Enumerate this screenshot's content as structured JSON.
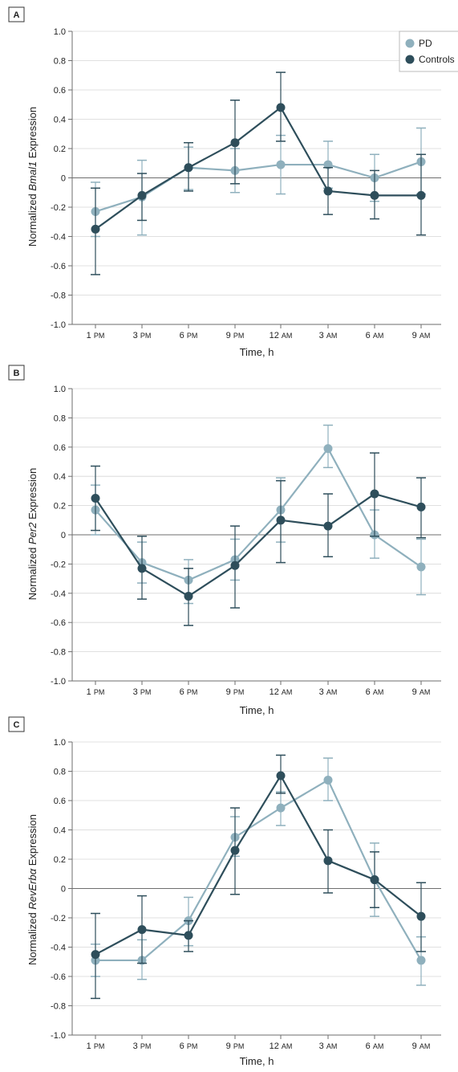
{
  "colors": {
    "PD": "#8fb0bd",
    "Controls": "#2e4e5b",
    "grid": "#d6d6d6",
    "axis": "#6e6e6e"
  },
  "legend": {
    "entries": [
      "PD",
      "Controls"
    ]
  },
  "chart_data": [
    {
      "type": "line",
      "panel": "A",
      "ylabel_pre": "Normalized ",
      "ylabel_gene": "Bmal1",
      "ylabel_post": " Expression",
      "xlabel": "Time, h",
      "categories": [
        "1 PM",
        "3 PM",
        "6 PM",
        "9 PM",
        "12 AM",
        "3 AM",
        "6 AM",
        "9 AM"
      ],
      "yticks": [
        "1.0",
        "0.8",
        "0.6",
        "0.4",
        "0.2",
        "0",
        "-0.2",
        "-0.4",
        "-0.6",
        "-0.8",
        "-1.0"
      ],
      "ylim": [
        -1.0,
        1.0
      ],
      "grid": true,
      "legend_position": "top-right",
      "series": [
        {
          "name": "PD",
          "values": [
            -0.23,
            -0.13,
            0.07,
            0.05,
            0.09,
            0.09,
            0.0,
            0.11
          ],
          "upper": [
            -0.03,
            0.12,
            0.21,
            0.2,
            0.29,
            0.25,
            0.16,
            0.34
          ],
          "lower": [
            -0.4,
            -0.39,
            -0.08,
            -0.1,
            -0.11,
            -0.07,
            -0.16,
            -0.11
          ]
        },
        {
          "name": "Controls",
          "values": [
            -0.35,
            -0.12,
            0.07,
            0.24,
            0.48,
            -0.09,
            -0.12,
            -0.12
          ],
          "upper": [
            -0.07,
            0.03,
            0.24,
            0.53,
            0.72,
            0.07,
            0.05,
            0.16
          ],
          "lower": [
            -0.66,
            -0.29,
            -0.09,
            -0.04,
            0.25,
            -0.25,
            -0.28,
            -0.39
          ]
        }
      ]
    },
    {
      "type": "line",
      "panel": "B",
      "ylabel_pre": "Normalized ",
      "ylabel_gene": "Per2",
      "ylabel_post": " Expression",
      "xlabel": "Time, h",
      "categories": [
        "1 PM",
        "3 PM",
        "6 PM",
        "9 PM",
        "12 AM",
        "3 AM",
        "6 AM",
        "9 AM"
      ],
      "yticks": [
        "1.0",
        "0.8",
        "0.6",
        "0.4",
        "0.2",
        "0",
        "-0.2",
        "-0.4",
        "-0.6",
        "-0.8",
        "-1.0"
      ],
      "ylim": [
        -1.0,
        1.0
      ],
      "grid": true,
      "series": [
        {
          "name": "PD",
          "values": [
            0.17,
            -0.19,
            -0.31,
            -0.17,
            0.17,
            0.59,
            0.0,
            -0.22
          ],
          "upper": [
            0.34,
            -0.05,
            -0.17,
            -0.03,
            0.39,
            0.75,
            0.17,
            -0.03
          ],
          "lower": [
            0.0,
            -0.33,
            -0.47,
            -0.31,
            -0.05,
            0.46,
            -0.16,
            -0.41
          ]
        },
        {
          "name": "Controls",
          "values": [
            0.25,
            -0.23,
            -0.42,
            -0.21,
            0.1,
            0.06,
            0.28,
            0.19
          ],
          "upper": [
            0.47,
            -0.01,
            -0.23,
            0.06,
            0.37,
            0.28,
            0.56,
            0.39
          ],
          "lower": [
            0.03,
            -0.44,
            -0.62,
            -0.5,
            -0.19,
            -0.15,
            -0.01,
            -0.02
          ]
        }
      ]
    },
    {
      "type": "line",
      "panel": "C",
      "ylabel_pre": "Normalized ",
      "ylabel_gene": "RevErbα",
      "ylabel_post": " Expression",
      "xlabel": "Time, h",
      "categories": [
        "1 PM",
        "3 PM",
        "6 PM",
        "9 PM",
        "12 AM",
        "3 AM",
        "6 AM",
        "9 AM"
      ],
      "yticks": [
        "1.0",
        "0.8",
        "0.6",
        "0.4",
        "0.2",
        "0",
        "-0.2",
        "-0.4",
        "-0.6",
        "-0.8",
        "-1.0"
      ],
      "ylim": [
        -1.0,
        1.0
      ],
      "grid": true,
      "series": [
        {
          "name": "PD",
          "values": [
            -0.49,
            -0.49,
            -0.22,
            0.35,
            0.55,
            0.74,
            0.06,
            -0.49
          ],
          "upper": [
            -0.38,
            -0.35,
            -0.06,
            0.49,
            0.66,
            0.89,
            0.31,
            -0.33
          ],
          "lower": [
            -0.6,
            -0.62,
            -0.39,
            0.22,
            0.43,
            0.6,
            -0.19,
            -0.66
          ]
        },
        {
          "name": "Controls",
          "values": [
            -0.45,
            -0.28,
            -0.32,
            0.26,
            0.77,
            0.19,
            0.06,
            -0.19
          ],
          "upper": [
            -0.17,
            -0.05,
            -0.22,
            0.55,
            0.91,
            0.4,
            0.25,
            0.04
          ],
          "lower": [
            -0.75,
            -0.51,
            -0.43,
            -0.04,
            0.65,
            -0.03,
            -0.13,
            -0.43
          ]
        }
      ]
    }
  ]
}
